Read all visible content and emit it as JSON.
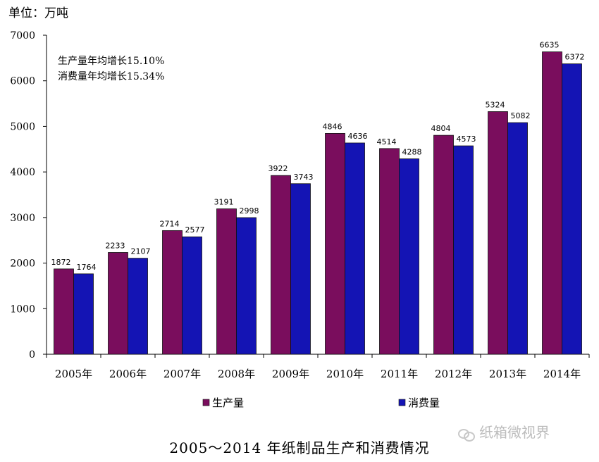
{
  "unit_label": "单位：万吨",
  "notes": [
    "生产量年均增长15.10%",
    "消费量年均增长15.34%"
  ],
  "watermark_text": "纸箱微视界",
  "colors": {
    "production": "#7a0d5d",
    "consumption": "#1414b4",
    "axis": "#000000"
  },
  "chart_data": {
    "type": "bar",
    "title": "2005～2014 年纸制品生产和消费情况",
    "categories": [
      "2005年",
      "2006年",
      "2007年",
      "2008年",
      "2009年",
      "2010年",
      "2011年",
      "2012年",
      "2013年",
      "2014年"
    ],
    "series": [
      {
        "name": "生产量",
        "values": [
          1872,
          2233,
          2714,
          3191,
          3922,
          4846,
          4514,
          4804,
          5324,
          6635
        ]
      },
      {
        "name": "消费量",
        "values": [
          1764,
          2107,
          2577,
          2998,
          3743,
          4636,
          4288,
          4573,
          5082,
          6372
        ]
      }
    ],
    "ylim": [
      0,
      7000
    ],
    "yticks": [
      0,
      1000,
      2000,
      3000,
      4000,
      5000,
      6000,
      7000
    ],
    "xlabel": "",
    "ylabel": "",
    "legend_position": "bottom"
  }
}
